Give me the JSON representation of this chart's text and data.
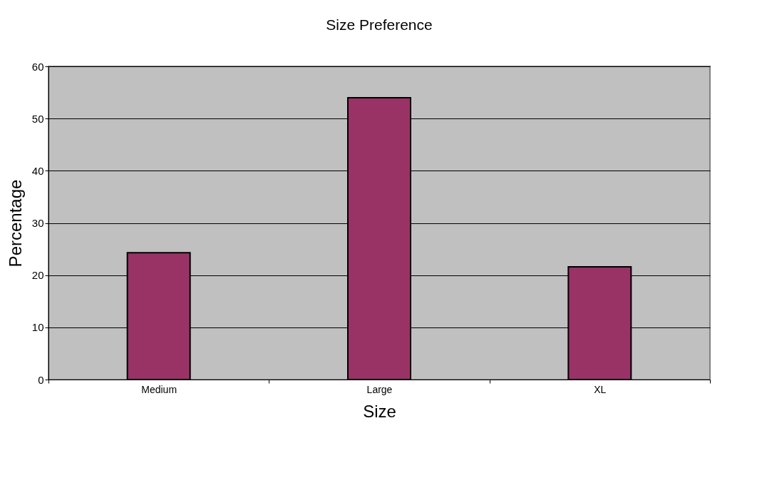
{
  "chart_data": {
    "type": "bar",
    "title": "Size Preference",
    "xlabel": "Size",
    "ylabel": "Percentage",
    "categories": [
      "Medium",
      "Large",
      "XL"
    ],
    "values": [
      24.3,
      54,
      21.6
    ],
    "color": "#993366",
    "ylim": [
      0,
      60
    ],
    "yticks": [
      0,
      10,
      20,
      30,
      40,
      50,
      60
    ],
    "grid": "y"
  }
}
